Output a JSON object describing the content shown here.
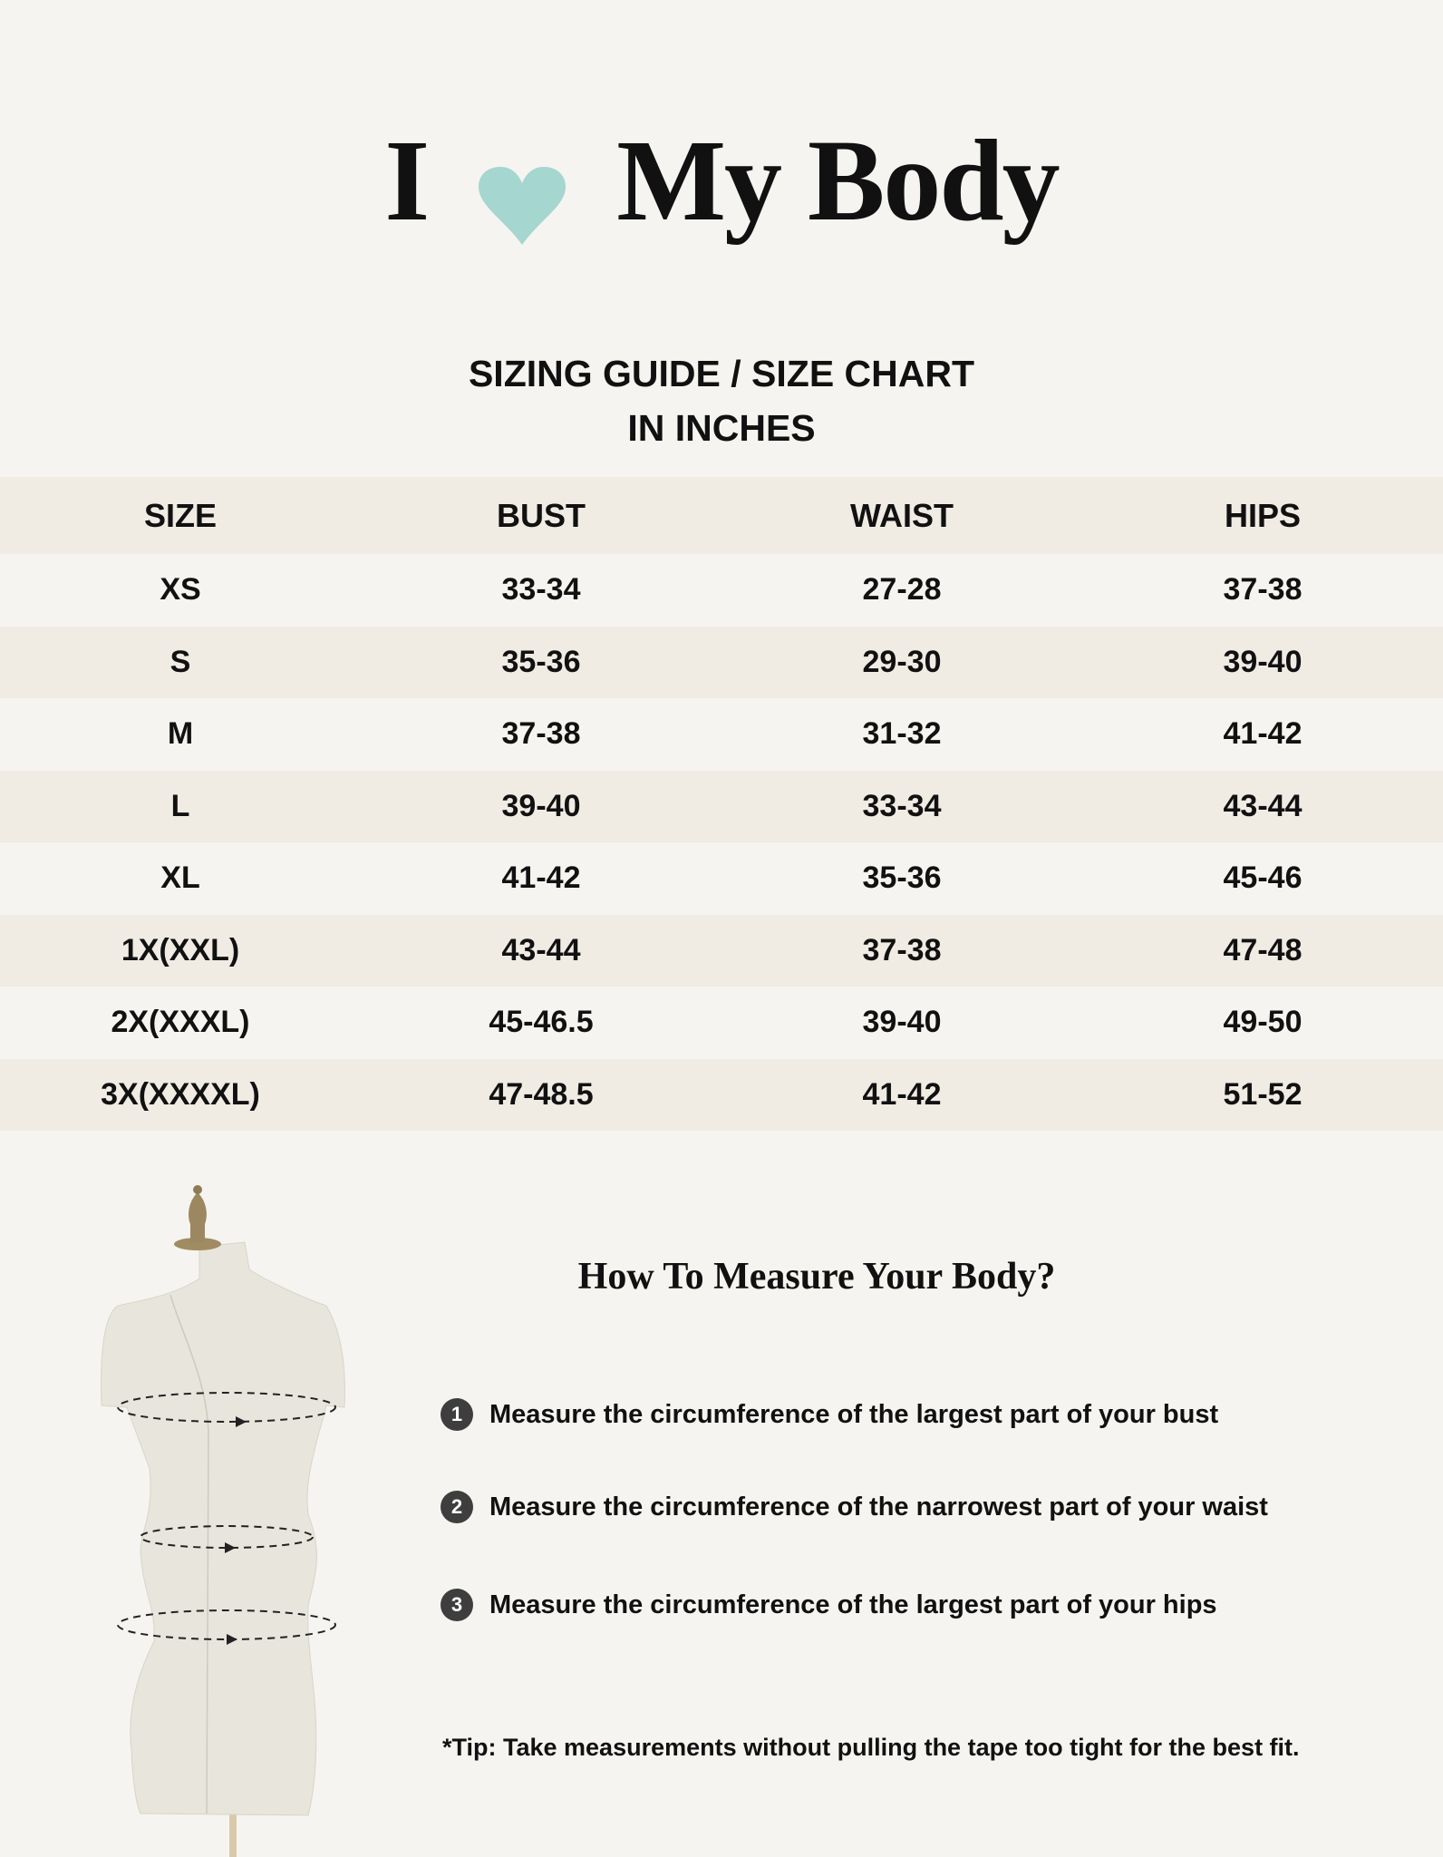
{
  "header": {
    "title_left": "I",
    "title_right": "My Body",
    "heart_icon": "heart-icon",
    "heart_color": "#a5d6cf"
  },
  "subtitle": {
    "line1": "SIZING GUIDE / SIZE CHART",
    "line2": "IN INCHES"
  },
  "table": {
    "columns": [
      "SIZE",
      "BUST",
      "WAIST",
      "HIPS"
    ],
    "rows": [
      [
        "XS",
        "33-34",
        "27-28",
        "37-38"
      ],
      [
        "S",
        "35-36",
        "29-30",
        "39-40"
      ],
      [
        "M",
        "37-38",
        "31-32",
        "41-42"
      ],
      [
        "L",
        "39-40",
        "33-34",
        "43-44"
      ],
      [
        "XL",
        "41-42",
        "35-36",
        "45-46"
      ],
      [
        "1X(XXL)",
        "43-44",
        "37-38",
        "47-48"
      ],
      [
        "2X(XXXL)",
        "45-46.5",
        "39-40",
        "49-50"
      ],
      [
        "3X(XXXXL)",
        "47-48.5",
        "41-42",
        "51-52"
      ]
    ],
    "stripe_color": "#f0ebe3"
  },
  "howto": {
    "heading": "How To Measure Your Body?",
    "steps": [
      {
        "num": "1",
        "text": "Measure the circumference of the largest part of your bust"
      },
      {
        "num": "2",
        "text": "Measure the circumference of the narrowest part of your waist"
      },
      {
        "num": "3",
        "text": "Measure the circumference of the largest part of your hips"
      }
    ],
    "tip": "*Tip: Take measurements without pulling the tape too tight for the best fit."
  }
}
